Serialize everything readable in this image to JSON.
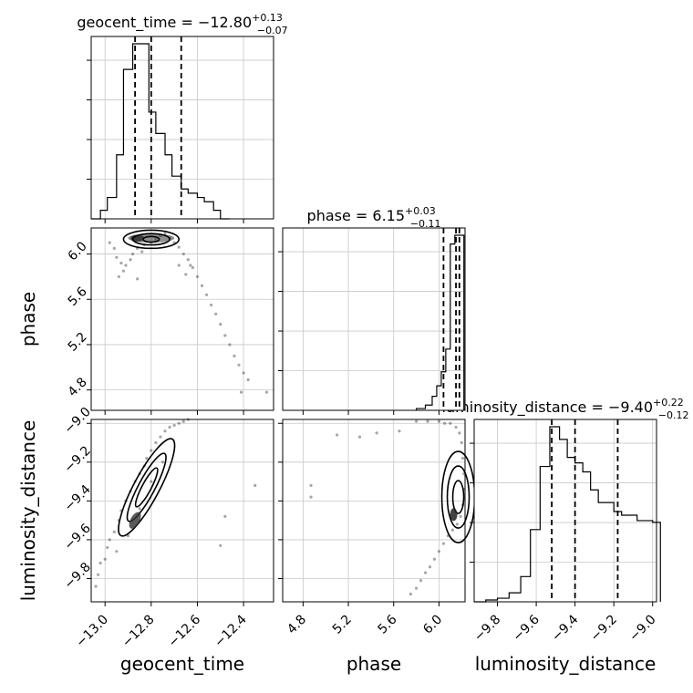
{
  "chart_data": {
    "type": "corner",
    "parameters": [
      "geocent_time",
      "phase",
      "luminosity_distance"
    ],
    "titles": [
      {
        "param": "geocent_time",
        "prefix": "geocent_time = ",
        "median": "−12.80",
        "plus": "+0.13",
        "minus": "−0.07"
      },
      {
        "param": "phase",
        "prefix": "phase = ",
        "median": "6.15",
        "plus": "+0.03",
        "minus": "−0.11"
      },
      {
        "param": "luminosity_distance",
        "prefix": "luminosity_distance = ",
        "median": "−9.40",
        "plus": "+0.22",
        "minus": "−0.12"
      }
    ],
    "ranges": {
      "geocent_time": [
        -13.06,
        -12.27
      ],
      "phase": [
        4.62,
        6.23
      ],
      "luminosity_distance": [
        -9.92,
        -8.98
      ]
    },
    "ticks": {
      "geocent_time": {
        "values": [
          -13.0,
          -12.8,
          -12.6,
          -12.4
        ],
        "labels": [
          "−13.0",
          "−12.8",
          "−12.6",
          "−12.4"
        ]
      },
      "phase": {
        "values": [
          4.8,
          5.2,
          5.6,
          6.0
        ],
        "labels": [
          "4.8",
          "5.2",
          "5.6",
          "6.0"
        ]
      },
      "luminosity_distance": {
        "values": [
          -9.8,
          -9.6,
          -9.4,
          -9.2,
          -9.0
        ],
        "labels": [
          "−9.8",
          "−9.6",
          "−9.4",
          "−9.2",
          "−9.0"
        ]
      }
    },
    "quantile_lines": {
      "geocent_time": [
        -12.87,
        -12.8,
        -12.67
      ],
      "phase": [
        6.04,
        6.15,
        6.18
      ],
      "luminosity_distance": [
        -9.52,
        -9.4,
        -9.18
      ]
    },
    "histograms": {
      "geocent_time": {
        "edges": [
          -13.06,
          -13.02,
          -12.99,
          -12.95,
          -12.92,
          -12.88,
          -12.85,
          -12.81,
          -12.78,
          -12.74,
          -12.71,
          -12.67,
          -12.64,
          -12.6,
          -12.57,
          -12.53,
          -12.5,
          -12.46
        ],
        "counts": [
          0,
          4,
          10,
          30,
          70,
          82,
          82,
          50,
          40,
          30,
          20,
          14,
          12,
          10,
          8,
          4,
          0
        ]
      },
      "phase": {
        "edges": [
          5.8,
          5.88,
          5.94,
          5.98,
          6.02,
          6.06,
          6.1,
          6.14,
          6.18,
          6.22
        ],
        "counts": [
          1,
          3,
          8,
          14,
          22,
          35,
          95,
          100,
          100
        ]
      },
      "luminosity_distance": {
        "edges": [
          -9.92,
          -9.86,
          -9.8,
          -9.74,
          -9.68,
          -9.63,
          -9.58,
          -9.53,
          -9.48,
          -9.44,
          -9.4,
          -9.36,
          -9.32,
          -9.28,
          -9.24,
          -9.2,
          -9.16,
          -9.12,
          -9.08,
          -9.04,
          -9.0,
          -8.96
        ],
        "counts": [
          0,
          1,
          2,
          5,
          14,
          40,
          75,
          97,
          90,
          80,
          77,
          72,
          62,
          55,
          55,
          50,
          48,
          48,
          45,
          45,
          44
        ]
      }
    },
    "scatter": {
      "phase_vs_geocent_time": [
        [
          -12.98,
          6.1
        ],
        [
          -12.96,
          6.05
        ],
        [
          -12.95,
          5.97
        ],
        [
          -12.93,
          5.92
        ],
        [
          -12.91,
          5.9
        ],
        [
          -12.89,
          5.95
        ],
        [
          -12.88,
          6.0
        ],
        [
          -12.86,
          6.05
        ],
        [
          -12.84,
          6.02
        ],
        [
          -12.83,
          6.08
        ],
        [
          -12.8,
          6.1
        ],
        [
          -12.78,
          6.13
        ],
        [
          -12.76,
          6.16
        ],
        [
          -12.74,
          6.18
        ],
        [
          -12.72,
          6.14
        ],
        [
          -12.7,
          6.1
        ],
        [
          -12.68,
          6.06
        ],
        [
          -12.66,
          6.0
        ],
        [
          -12.64,
          5.95
        ],
        [
          -12.62,
          5.88
        ],
        [
          -12.6,
          5.8
        ],
        [
          -12.58,
          5.72
        ],
        [
          -12.56,
          5.64
        ],
        [
          -12.54,
          5.55
        ],
        [
          -12.52,
          5.47
        ],
        [
          -12.5,
          5.38
        ],
        [
          -12.48,
          5.28
        ],
        [
          -12.46,
          5.2
        ],
        [
          -12.44,
          5.1
        ],
        [
          -12.42,
          5.02
        ],
        [
          -12.4,
          4.95
        ],
        [
          -12.38,
          4.89
        ],
        [
          -12.3,
          4.78
        ],
        [
          -12.41,
          4.78
        ],
        [
          -12.92,
          5.85
        ],
        [
          -12.94,
          5.8
        ],
        [
          -12.86,
          5.78
        ],
        [
          -12.68,
          5.9
        ],
        [
          -12.63,
          5.9
        ],
        [
          -12.65,
          5.82
        ]
      ],
      "ld_vs_geocent_time": [
        [
          -13.03,
          -9.78
        ],
        [
          -13.02,
          -9.72
        ],
        [
          -13.0,
          -9.7
        ],
        [
          -12.99,
          -9.64
        ],
        [
          -12.98,
          -9.6
        ],
        [
          -12.96,
          -9.56
        ],
        [
          -12.94,
          -9.5
        ],
        [
          -12.93,
          -9.45
        ],
        [
          -12.91,
          -9.4
        ],
        [
          -12.89,
          -9.35
        ],
        [
          -12.87,
          -9.3
        ],
        [
          -12.85,
          -9.26
        ],
        [
          -12.83,
          -9.22
        ],
        [
          -12.82,
          -9.18
        ],
        [
          -12.8,
          -9.14
        ],
        [
          -12.78,
          -9.1
        ],
        [
          -12.76,
          -9.07
        ],
        [
          -12.74,
          -9.04
        ],
        [
          -12.72,
          -9.02
        ],
        [
          -12.7,
          -9.01
        ],
        [
          -12.68,
          -9.0
        ],
        [
          -12.66,
          -8.99
        ],
        [
          -12.64,
          -8.98
        ],
        [
          -13.04,
          -9.84
        ],
        [
          -12.95,
          -9.66
        ],
        [
          -12.9,
          -9.58
        ],
        [
          -12.85,
          -9.44
        ],
        [
          -12.8,
          -9.3
        ],
        [
          -12.75,
          -9.2
        ],
        [
          -12.5,
          -9.63
        ],
        [
          -12.35,
          -9.32
        ],
        [
          -12.48,
          -9.48
        ]
      ],
      "ld_vs_phase": [
        [
          4.87,
          -9.32
        ],
        [
          4.87,
          -9.38
        ],
        [
          5.1,
          -9.06
        ],
        [
          5.3,
          -9.07
        ],
        [
          5.45,
          -9.05
        ],
        [
          5.65,
          -9.04
        ],
        [
          5.8,
          -8.99
        ],
        [
          5.9,
          -8.99
        ],
        [
          6.0,
          -8.99
        ],
        [
          6.05,
          -9.0
        ],
        [
          6.1,
          -9.0
        ],
        [
          6.15,
          -9.02
        ],
        [
          6.18,
          -9.05
        ],
        [
          6.2,
          -9.1
        ],
        [
          6.21,
          -9.18
        ],
        [
          6.22,
          -9.26
        ],
        [
          6.22,
          -9.34
        ],
        [
          6.21,
          -9.42
        ],
        [
          6.19,
          -9.48
        ],
        [
          6.16,
          -9.52
        ],
        [
          6.12,
          -9.55
        ],
        [
          6.08,
          -9.58
        ],
        [
          6.04,
          -9.62
        ],
        [
          6.0,
          -9.66
        ],
        [
          5.96,
          -9.7
        ],
        [
          5.92,
          -9.74
        ],
        [
          5.88,
          -9.77
        ],
        [
          5.84,
          -9.81
        ],
        [
          5.8,
          -9.85
        ],
        [
          5.75,
          -9.88
        ]
      ]
    }
  }
}
